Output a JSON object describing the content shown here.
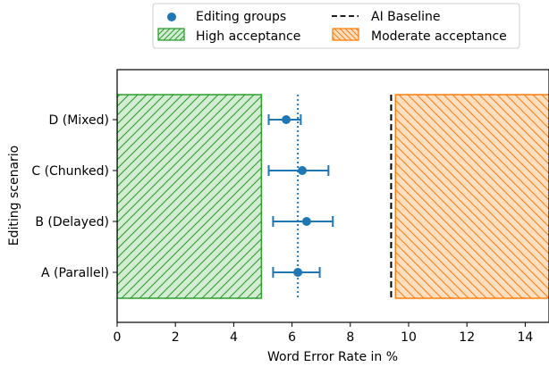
{
  "chart_data": {
    "type": "scatter",
    "title": "",
    "xlabel": "Word Error Rate in %",
    "ylabel": "Editing scenario",
    "xlim": [
      0,
      15
    ],
    "xticks": [
      0,
      2,
      4,
      6,
      8,
      10,
      12,
      14
    ],
    "categories": [
      "A (Parallel)",
      "B (Delayed)",
      "C (Chunked)",
      "D (Mixed)"
    ],
    "series": [
      {
        "name": "Editing groups",
        "color": "#1f77b4",
        "values": [
          6.2,
          6.5,
          6.35,
          5.8
        ],
        "error_low": [
          5.35,
          5.35,
          5.2,
          5.2
        ],
        "error_high": [
          6.95,
          7.4,
          7.25,
          6.3
        ]
      }
    ],
    "reference_lines": {
      "mean_dotted": 6.2,
      "ai_baseline": {
        "label": "AI Baseline",
        "value": 9.4,
        "color": "#000000"
      }
    },
    "regions": [
      {
        "label": "High acceptance",
        "from": 0,
        "to": 4.95,
        "color": "#2ca02c",
        "fill": "#d4ecd4",
        "hatch": "forward-diagonal"
      },
      {
        "label": "Moderate acceptance",
        "from": 9.55,
        "to": 15,
        "color": "#ff7f0e",
        "fill": "#ffdfc2",
        "hatch": "backward-diagonal"
      }
    ],
    "legend": {
      "placement": "top-center",
      "entries": [
        "Editing groups",
        "AI Baseline",
        "High acceptance",
        "Moderate acceptance"
      ]
    },
    "grid": false
  }
}
